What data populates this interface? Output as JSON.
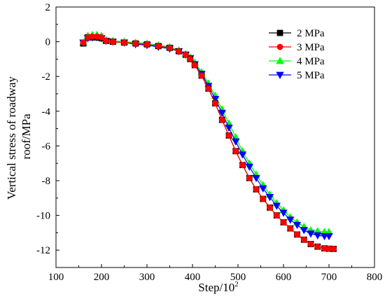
{
  "chart_data": {
    "type": "line",
    "xlabel": "Step/10",
    "xlabel_sup": "2",
    "ylabel_lines": [
      "Vertical stress of roadway",
      "roof/MPa"
    ],
    "xlim": [
      100,
      800
    ],
    "ylim": [
      -13,
      2
    ],
    "xticks": [
      100,
      200,
      300,
      400,
      500,
      600,
      700,
      800
    ],
    "yticks": [
      2,
      0,
      -2,
      -4,
      -6,
      -8,
      -10,
      -12
    ],
    "grid": false,
    "legend_position": "top-right",
    "series": [
      {
        "name": "2 MPa",
        "color": "#000000",
        "marker": "square",
        "x": [
          160,
          170,
          180,
          190,
          200,
          210,
          225,
          250,
          275,
          300,
          325,
          350,
          370,
          385,
          395,
          405,
          420,
          435,
          450,
          465,
          480,
          495,
          510,
          525,
          540,
          555,
          570,
          585,
          600,
          615,
          630,
          645,
          660,
          675,
          690,
          700,
          710
        ],
        "y": [
          -0.1,
          0.25,
          0.25,
          0.25,
          0.2,
          0.05,
          0.0,
          -0.05,
          -0.1,
          -0.15,
          -0.25,
          -0.35,
          -0.55,
          -0.75,
          -1.0,
          -1.35,
          -1.95,
          -2.7,
          -3.55,
          -4.5,
          -5.4,
          -6.3,
          -7.1,
          -7.85,
          -8.5,
          -9.05,
          -9.55,
          -10.0,
          -10.4,
          -10.75,
          -11.1,
          -11.4,
          -11.65,
          -11.8,
          -11.9,
          -11.92,
          -11.93
        ]
      },
      {
        "name": "3 MPa",
        "color": "#ff0000",
        "marker": "circle",
        "x": [
          160,
          170,
          180,
          190,
          200,
          210,
          225,
          250,
          275,
          300,
          325,
          350,
          370,
          385,
          395,
          405,
          420,
          435,
          450,
          465,
          480,
          495,
          510,
          525,
          540,
          555,
          570,
          585,
          600,
          615,
          630,
          645,
          660,
          675,
          690,
          700,
          710
        ],
        "y": [
          -0.05,
          0.25,
          0.3,
          0.3,
          0.25,
          0.05,
          0.0,
          -0.05,
          -0.1,
          -0.15,
          -0.25,
          -0.35,
          -0.55,
          -0.75,
          -1.0,
          -1.35,
          -1.95,
          -2.7,
          -3.55,
          -4.5,
          -5.4,
          -6.3,
          -7.1,
          -7.85,
          -8.5,
          -9.05,
          -9.55,
          -10.0,
          -10.4,
          -10.75,
          -11.1,
          -11.4,
          -11.65,
          -11.8,
          -11.9,
          -11.92,
          -11.93
        ]
      },
      {
        "name": "4 MPa",
        "color": "#00ff00",
        "marker": "triangle-up",
        "x": [
          160,
          170,
          180,
          190,
          200,
          210,
          225,
          250,
          275,
          300,
          325,
          350,
          370,
          385,
          395,
          405,
          420,
          435,
          450,
          465,
          480,
          495,
          510,
          525,
          540,
          555,
          570,
          585,
          600,
          615,
          630,
          645,
          660,
          675,
          690,
          700
        ],
        "y": [
          -0.05,
          0.35,
          0.4,
          0.4,
          0.35,
          0.1,
          0.05,
          0.0,
          -0.05,
          -0.1,
          -0.2,
          -0.3,
          -0.5,
          -0.7,
          -0.9,
          -1.2,
          -1.75,
          -2.4,
          -3.1,
          -3.9,
          -4.7,
          -5.5,
          -6.3,
          -7.0,
          -7.65,
          -8.25,
          -8.8,
          -9.3,
          -9.7,
          -10.1,
          -10.4,
          -10.65,
          -10.85,
          -10.9,
          -10.95,
          -10.95
        ]
      },
      {
        "name": "5 MPa",
        "color": "#0000ff",
        "marker": "triangle-down",
        "x": [
          160,
          170,
          180,
          190,
          200,
          210,
          225,
          250,
          275,
          300,
          325,
          350,
          370,
          385,
          395,
          405,
          420,
          435,
          450,
          465,
          480,
          495,
          510,
          525,
          540,
          555,
          570,
          585,
          600,
          615,
          630,
          645,
          660,
          675,
          690,
          700
        ],
        "y": [
          -0.05,
          0.2,
          0.25,
          0.25,
          0.2,
          0.05,
          0.0,
          -0.05,
          -0.15,
          -0.2,
          -0.3,
          -0.4,
          -0.55,
          -0.75,
          -0.95,
          -1.3,
          -1.85,
          -2.55,
          -3.3,
          -4.1,
          -4.95,
          -5.75,
          -6.5,
          -7.2,
          -7.85,
          -8.45,
          -8.95,
          -9.45,
          -9.85,
          -10.25,
          -10.55,
          -10.85,
          -11.05,
          -11.15,
          -11.2,
          -11.2
        ]
      }
    ]
  }
}
